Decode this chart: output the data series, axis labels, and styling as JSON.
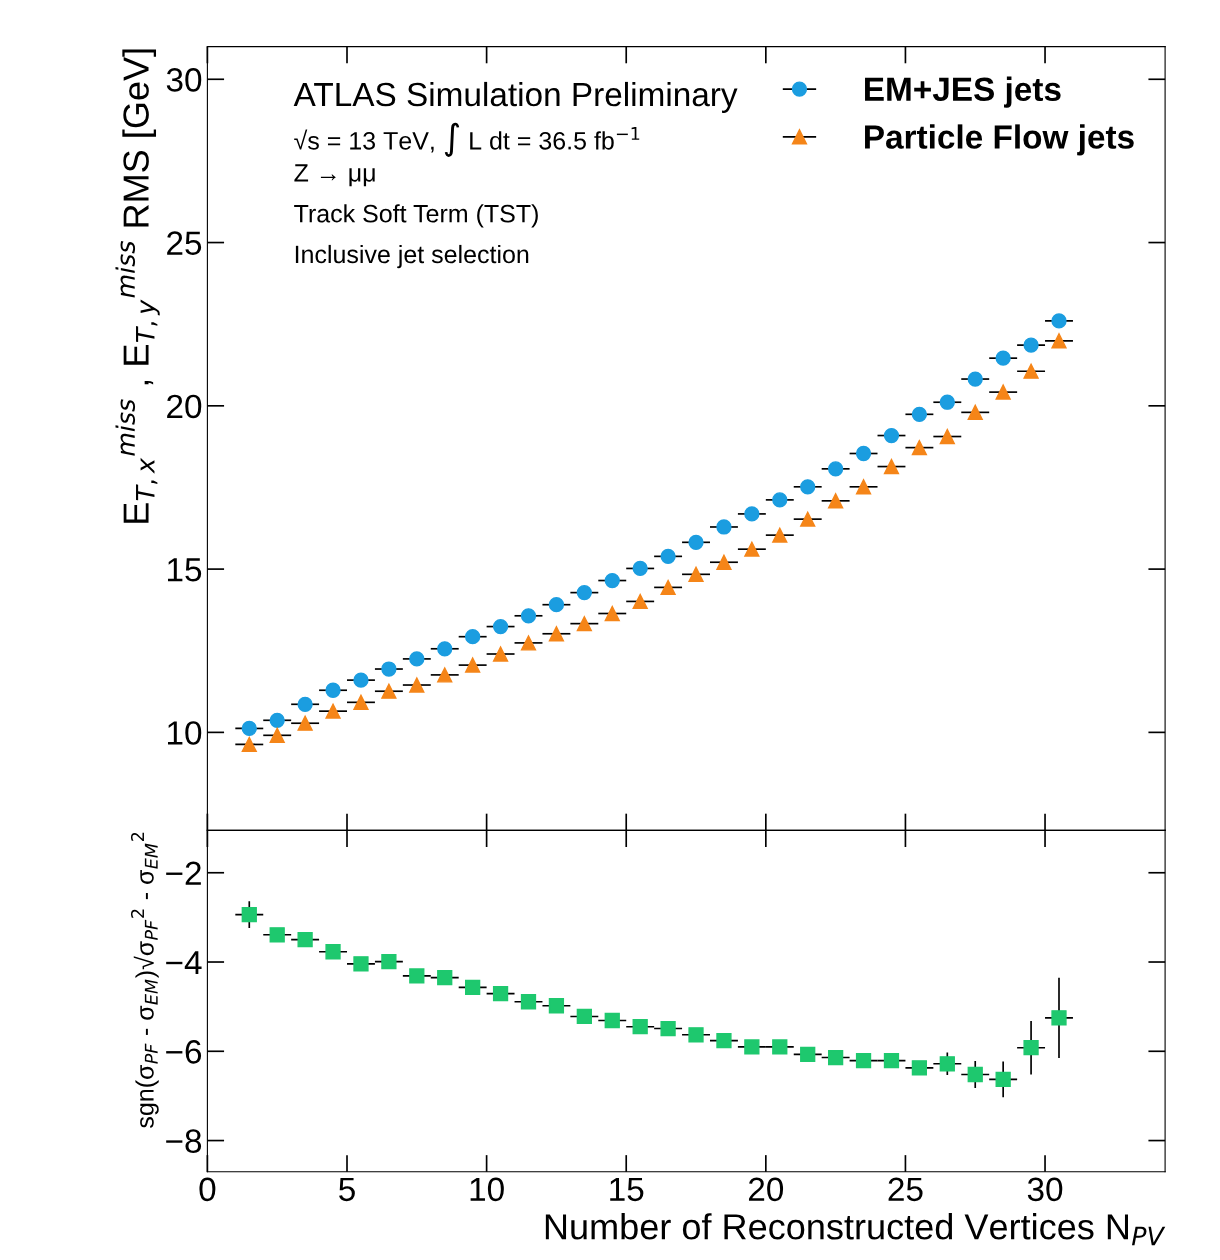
{
  "chart_data": [
    {
      "type": "scatter",
      "ylabel": "E$_{T,x}$$^{miss}$ , E$_{T,y}$$^{miss}$ RMS [GeV]",
      "annotations": [
        "ATLAS Simulation Preliminary",
        "√s = 13 TeV, ∫ L dt = 36.5 fb$^{−1}$",
        "Z → μμ",
        "Track Soft Term (TST)",
        "Inclusive jet selection"
      ],
      "x": [
        1.5,
        2.5,
        3.5,
        4.5,
        5.5,
        6.5,
        7.5,
        8.5,
        9.5,
        10.5,
        11.5,
        12.5,
        13.5,
        14.5,
        15.5,
        16.5,
        17.5,
        18.5,
        19.5,
        20.5,
        21.5,
        22.5,
        23.5,
        24.5,
        25.5,
        26.5,
        27.5,
        28.5,
        29.5,
        30.5
      ],
      "series": [
        {
          "name": "EM+JES jets",
          "color": "#1b9de0",
          "marker": "circle",
          "values": [
            10.12,
            10.37,
            10.86,
            11.29,
            11.6,
            11.94,
            12.25,
            12.56,
            12.93,
            13.24,
            13.57,
            13.91,
            14.28,
            14.65,
            15.02,
            15.39,
            15.82,
            16.29,
            16.69,
            17.12,
            17.52,
            18.07,
            18.54,
            19.09,
            19.74,
            20.11,
            20.82,
            21.46,
            21.86,
            22.6
          ],
          "xerrors": [
            0.5,
            0.5,
            0.5,
            0.5,
            0.5,
            0.5,
            0.5,
            0.5,
            0.5,
            0.5,
            0.5,
            0.5,
            0.5,
            0.5,
            0.5,
            0.5,
            0.5,
            0.5,
            0.5,
            0.5,
            0.5,
            0.5,
            0.5,
            0.5,
            0.5,
            0.5,
            0.5,
            0.5,
            0.5,
            0.5
          ]
        },
        {
          "name": "Particle Flow jets",
          "color": "#f58518",
          "marker": "triangle",
          "values": [
            9.63,
            9.91,
            10.28,
            10.65,
            10.92,
            11.26,
            11.45,
            11.76,
            12.06,
            12.4,
            12.74,
            13.02,
            13.33,
            13.64,
            14.01,
            14.44,
            14.84,
            15.21,
            15.61,
            16.04,
            16.53,
            17.09,
            17.52,
            18.14,
            18.72,
            19.06,
            19.8,
            20.42,
            21.06,
            21.99
          ],
          "xerrors": [
            0.5,
            0.5,
            0.5,
            0.5,
            0.5,
            0.5,
            0.5,
            0.5,
            0.5,
            0.5,
            0.5,
            0.5,
            0.5,
            0.5,
            0.5,
            0.5,
            0.5,
            0.5,
            0.5,
            0.5,
            0.5,
            0.5,
            0.5,
            0.5,
            0.5,
            0.5,
            0.5,
            0.5,
            0.5,
            0.5
          ]
        }
      ],
      "xlim": [
        0,
        34.3
      ],
      "xticks": [
        0,
        5,
        10,
        15,
        20,
        25,
        30
      ],
      "ylim": [
        7,
        31
      ],
      "yticks": [
        10,
        15,
        20,
        25,
        30
      ],
      "tick_labels": "y",
      "legend": "top right",
      "grid": false
    },
    {
      "type": "scatter",
      "xlabel": "Number of Reconstructed Vertices N$_{PV}$",
      "ylabel": "sgn(σ$_{PF}$ - σ$_{EM}$)√σ$_{PF}$$^{2}$ - σ$_{EM}$$^{2}$",
      "x": [
        1.5,
        2.5,
        3.5,
        4.5,
        5.5,
        6.5,
        7.5,
        8.5,
        9.5,
        10.5,
        11.5,
        12.5,
        13.5,
        14.5,
        15.5,
        16.5,
        17.5,
        18.5,
        19.5,
        20.5,
        21.5,
        22.5,
        23.5,
        24.5,
        25.5,
        26.5,
        27.5,
        28.5,
        29.5,
        30.5
      ],
      "series": [
        {
          "color": "#1ec86e",
          "marker": "square",
          "values": [
            -2.94,
            -3.39,
            -3.5,
            -3.77,
            -4.04,
            -3.99,
            -4.31,
            -4.35,
            -4.57,
            -4.71,
            -4.89,
            -4.98,
            -5.22,
            -5.31,
            -5.45,
            -5.49,
            -5.63,
            -5.76,
            -5.9,
            -5.9,
            -6.07,
            -6.14,
            -6.21,
            -6.21,
            -6.37,
            -6.28,
            -6.52,
            -6.63,
            -5.92,
            -5.25
          ],
          "errors": [
            0.3,
            null,
            null,
            null,
            null,
            null,
            null,
            null,
            null,
            null,
            null,
            null,
            null,
            null,
            null,
            null,
            null,
            null,
            null,
            null,
            null,
            null,
            null,
            null,
            null,
            0.25,
            0.3,
            0.4,
            0.6,
            0.9
          ],
          "xerrors": [
            0.5,
            0.5,
            0.5,
            0.5,
            0.5,
            0.5,
            0.5,
            0.5,
            0.5,
            0.5,
            0.5,
            0.5,
            0.5,
            0.5,
            0.5,
            0.5,
            0.5,
            0.5,
            0.5,
            0.5,
            0.5,
            0.5,
            0.5,
            0.5,
            0.5,
            0.5,
            0.5,
            0.5,
            0.5,
            0.5
          ]
        }
      ],
      "xlim": [
        0,
        34.3
      ],
      "xticks": [
        0,
        5,
        10,
        15,
        20,
        25,
        30
      ],
      "ylim": [
        -8.7,
        -1.05
      ],
      "yticks": [
        {
          "value": -2,
          "label": "−2"
        },
        {
          "value": -4,
          "label": "−4"
        },
        {
          "value": -6,
          "label": "−6"
        },
        {
          "value": -8,
          "label": "−8"
        }
      ],
      "grid": false
    }
  ]
}
